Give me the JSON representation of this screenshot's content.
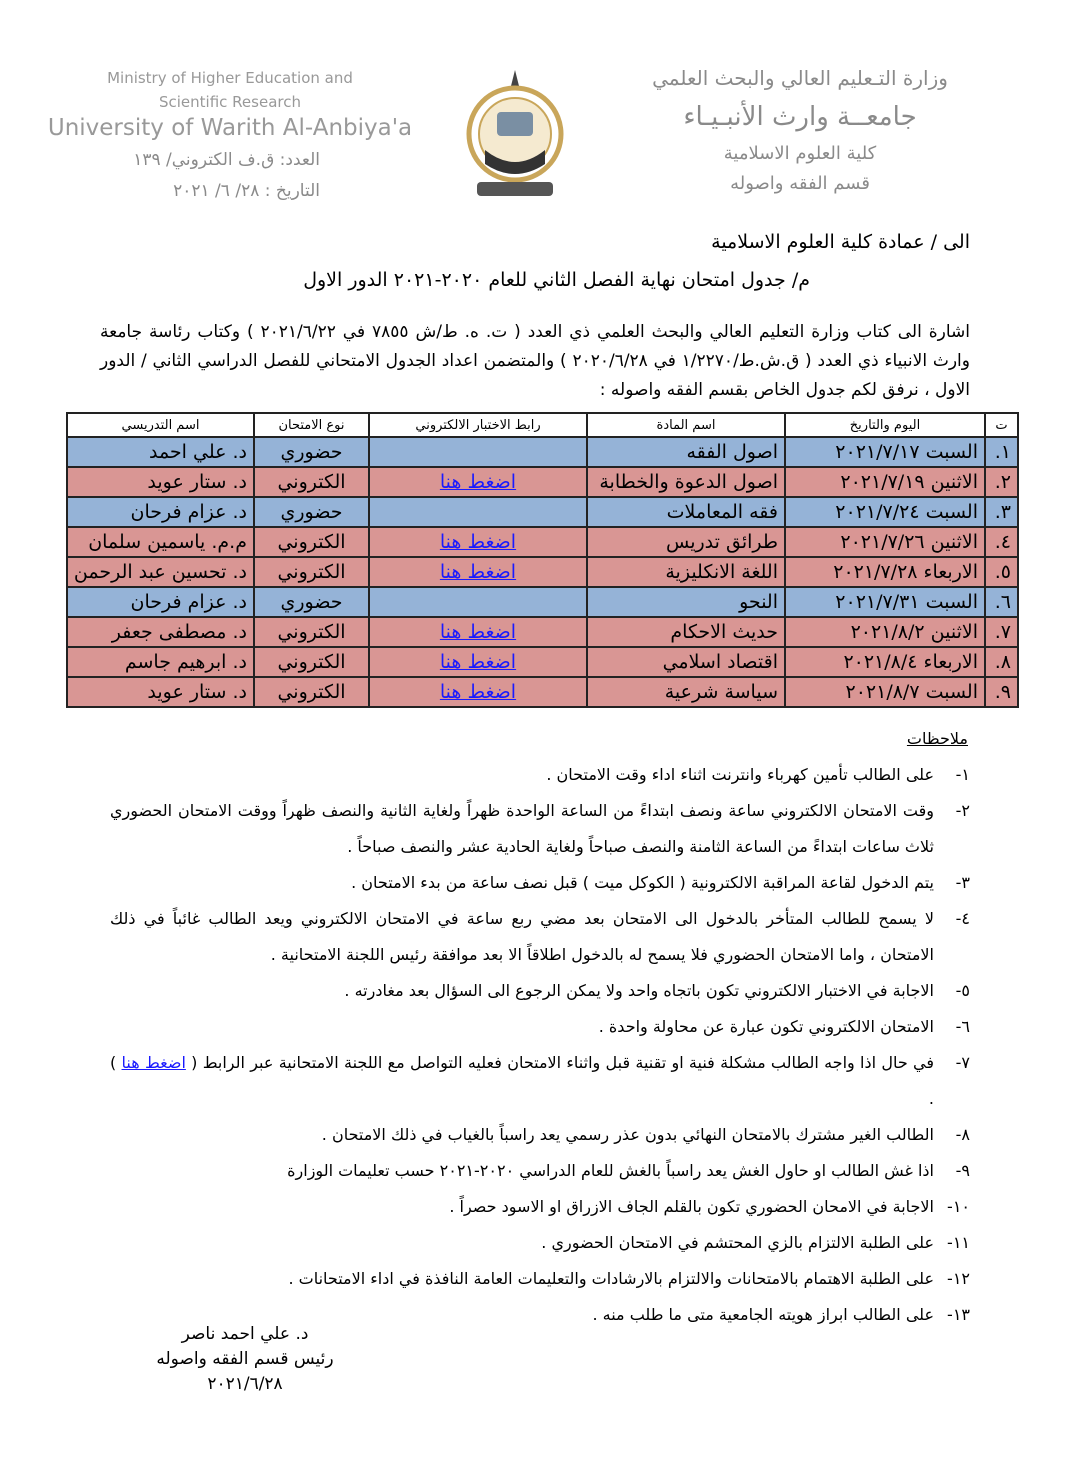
{
  "header": {
    "en_lines": [
      "Ministry of Higher Education and",
      "Scientific Research"
    ],
    "en_university": "University of Warith Al-Anbiya'a",
    "ref_number": "العدد: ق.ف الكتروني/ ١٣٩",
    "ref_date": "التاريخ : ٢٨/ ٦/ ٢٠٢١",
    "ar_ministry": "وزارة التـعليم العالي والبحث العلمي",
    "ar_university": "جامعــة وارث الأنبـيـاء",
    "ar_college": "كلية العلوم الاسلامية",
    "ar_department": "قسم الفقه واصوله"
  },
  "addressee": "الى / عمادة كلية العلوم الاسلامية",
  "subject": "م/ جدول امتحان نهاية الفصل الثاني للعام ٢٠٢٠-٢٠٢١ الدور الاول",
  "intro": "اشارة الى كتاب وزارة التعليم العالي والبحث العلمي ذي العدد ( ت. ه. ط/ش ٧٨٥٥ في ٢٠٢١/٦/٢٢ ) وكتاب رئاسة جامعة وارث الانبياء ذي العدد ( ق.ش.ط/١/٢٢٧٠ في ٢٠٢٠/٦/٢٨ ) والمتضمن اعداد الجدول الامتحاني للفصل الدراسي الثاني / الدور الاول ، نرفق لكم جدول الخاص بقسم الفقه واصوله :",
  "table": {
    "headers": [
      "ت",
      "اليوم والتاريخ",
      "اسم المادة",
      "رابط الاختبار الالكتروني",
      "نوع الامتحان",
      "اسم التدريسي"
    ],
    "rows": [
      {
        "color": "#95b3d7",
        "cells": [
          "١.",
          "السبت ٢٠٢١/٧/١٧",
          "اصول الفقه",
          null,
          "حضوري",
          "د. علي احمد"
        ]
      },
      {
        "color": "#d99694",
        "cells": [
          "٢.",
          "الاثنين ٢٠٢١/٧/١٩",
          "اصول الدعوة والخطابة",
          "اضغط هنا",
          "الكتروني",
          "د. ستار عويد"
        ]
      },
      {
        "color": "#95b3d7",
        "cells": [
          "٣.",
          "السبت ٢٠٢١/٧/٢٤",
          "فقه المعاملات",
          null,
          "حضوري",
          "د. عزام فرحان"
        ]
      },
      {
        "color": "#d99694",
        "cells": [
          "٤.",
          "الاثنين ٢٠٢١/٧/٢٦",
          "طرائق تدريس",
          "اضغط هنا",
          "الكتروني",
          "م.م. ياسمين سلمان"
        ]
      },
      {
        "color": "#d99694",
        "cells": [
          "٥.",
          "الاربعاء ٢٠٢١/٧/٢٨",
          "اللغة الانكليزية",
          "اضغط هنا",
          "الكتروني",
          "د. تحسين عبد الرحمن"
        ]
      },
      {
        "color": "#95b3d7",
        "cells": [
          "٦.",
          "السبت ٢٠٢١/٧/٣١",
          "النحو",
          null,
          "حضوري",
          "د. عزام فرحان"
        ]
      },
      {
        "color": "#d99694",
        "cells": [
          "٧.",
          "الاثنين ٢٠٢١/٨/٢",
          "حديث الاحكام",
          "اضغط هنا",
          "الكتروني",
          "د. مصطفى جعفر"
        ]
      },
      {
        "color": "#d99694",
        "cells": [
          "٨.",
          "الاربعاء ٢٠٢١/٨/٤",
          "اقتصاد اسلامي",
          "اضغط هنا",
          "الكتروني",
          "د. ابرهيم جاسم"
        ]
      },
      {
        "color": "#d99694",
        "cells": [
          "٩.",
          "السبت ٢٠٢١/٨/٧",
          "سياسة شرعية",
          "اضغط هنا",
          "الكتروني",
          "د. ستار عويد"
        ]
      }
    ]
  },
  "notes": {
    "title": "ملاحظات",
    "items": [
      {
        "num": "١-",
        "text": "على الطالب تأمين كهرباء وانترنت اثناء اداء وقت الامتحان ."
      },
      {
        "num": "٢-",
        "text": "وقت الامتحان الالكتروني ساعة ونصف ابتداءً من الساعة الواحدة ظهراً ولغاية الثانية والنصف ظهراً ووقت الامتحان الحضوري ثلاث ساعات ابتداءً من الساعة الثامنة والنصف صباحاً ولغاية الحادية عشر والنصف صباحاً ."
      },
      {
        "num": "٣-",
        "text": "يتم الدخول لقاعة المراقبة الالكترونية ( الكوكل ميت ) قبل نصف ساعة من بدء الامتحان ."
      },
      {
        "num": "٤-",
        "text": "لا يسمح للطالب المتأخر بالدخول الى الامتحان بعد مضي ربع ساعة في الامتحان الالكتروني ويعد الطالب غائباً في ذلك الامتحان ، واما الامتحان الحضوري فلا يسمح له بالدخول اطلاقاً الا بعد موافقة رئيس اللجنة الامتحانية ."
      },
      {
        "num": "٥-",
        "text": "الاجابة في الاختبار الالكتروني تكون باتجاه واحد ولا يمكن الرجوع الى السؤال بعد مغادرته ."
      },
      {
        "num": "٦-",
        "text": "الامتحان الالكتروني تكون عبارة عن محاولة واحدة ."
      },
      {
        "num": "٧-",
        "text": "في حال اذا واجه الطالب مشكلة فنية او تقنية قبل واثناء الامتحان فعليه التواصل مع اللجنة الامتحانية عبر الرابط (",
        "link": "اضغط هنا",
        "tail": ") ."
      },
      {
        "num": "٨-",
        "text": "الطالب الغير مشترك بالامتحان النهائي بدون عذر رسمي يعد راسباً بالغياب في ذلك الامتحان ."
      },
      {
        "num": "٩-",
        "text": "اذا غش الطالب او حاول الغش يعد راسباً بالغش للعام الدراسي ٢٠٢٠-٢٠٢١ حسب تعليمات الوزارة"
      },
      {
        "num": "١٠-",
        "text": "الاجابة في الامحان الحضوري تكون بالقلم الجاف الازراق او الاسود حصراً ."
      },
      {
        "num": "١١-",
        "text": "على الطلبة الالتزام بالزي المحتشم في الامتحان الحضوري ."
      },
      {
        "num": "١٢-",
        "text": "على الطلبة الاهتمام بالامتحانات والالتزام بالارشادات والتعليمات العامة النافذة في اداء الامتحانات ."
      },
      {
        "num": "١٣-",
        "text": "على الطالب ابراز هويته الجامعية متى ما طلب منه ."
      }
    ]
  },
  "signature": {
    "name": "د. علي احمد ناصر",
    "position": "رئيس قسم الفقه واصوله",
    "date": "٢٠٢١/٦/٢٨"
  }
}
